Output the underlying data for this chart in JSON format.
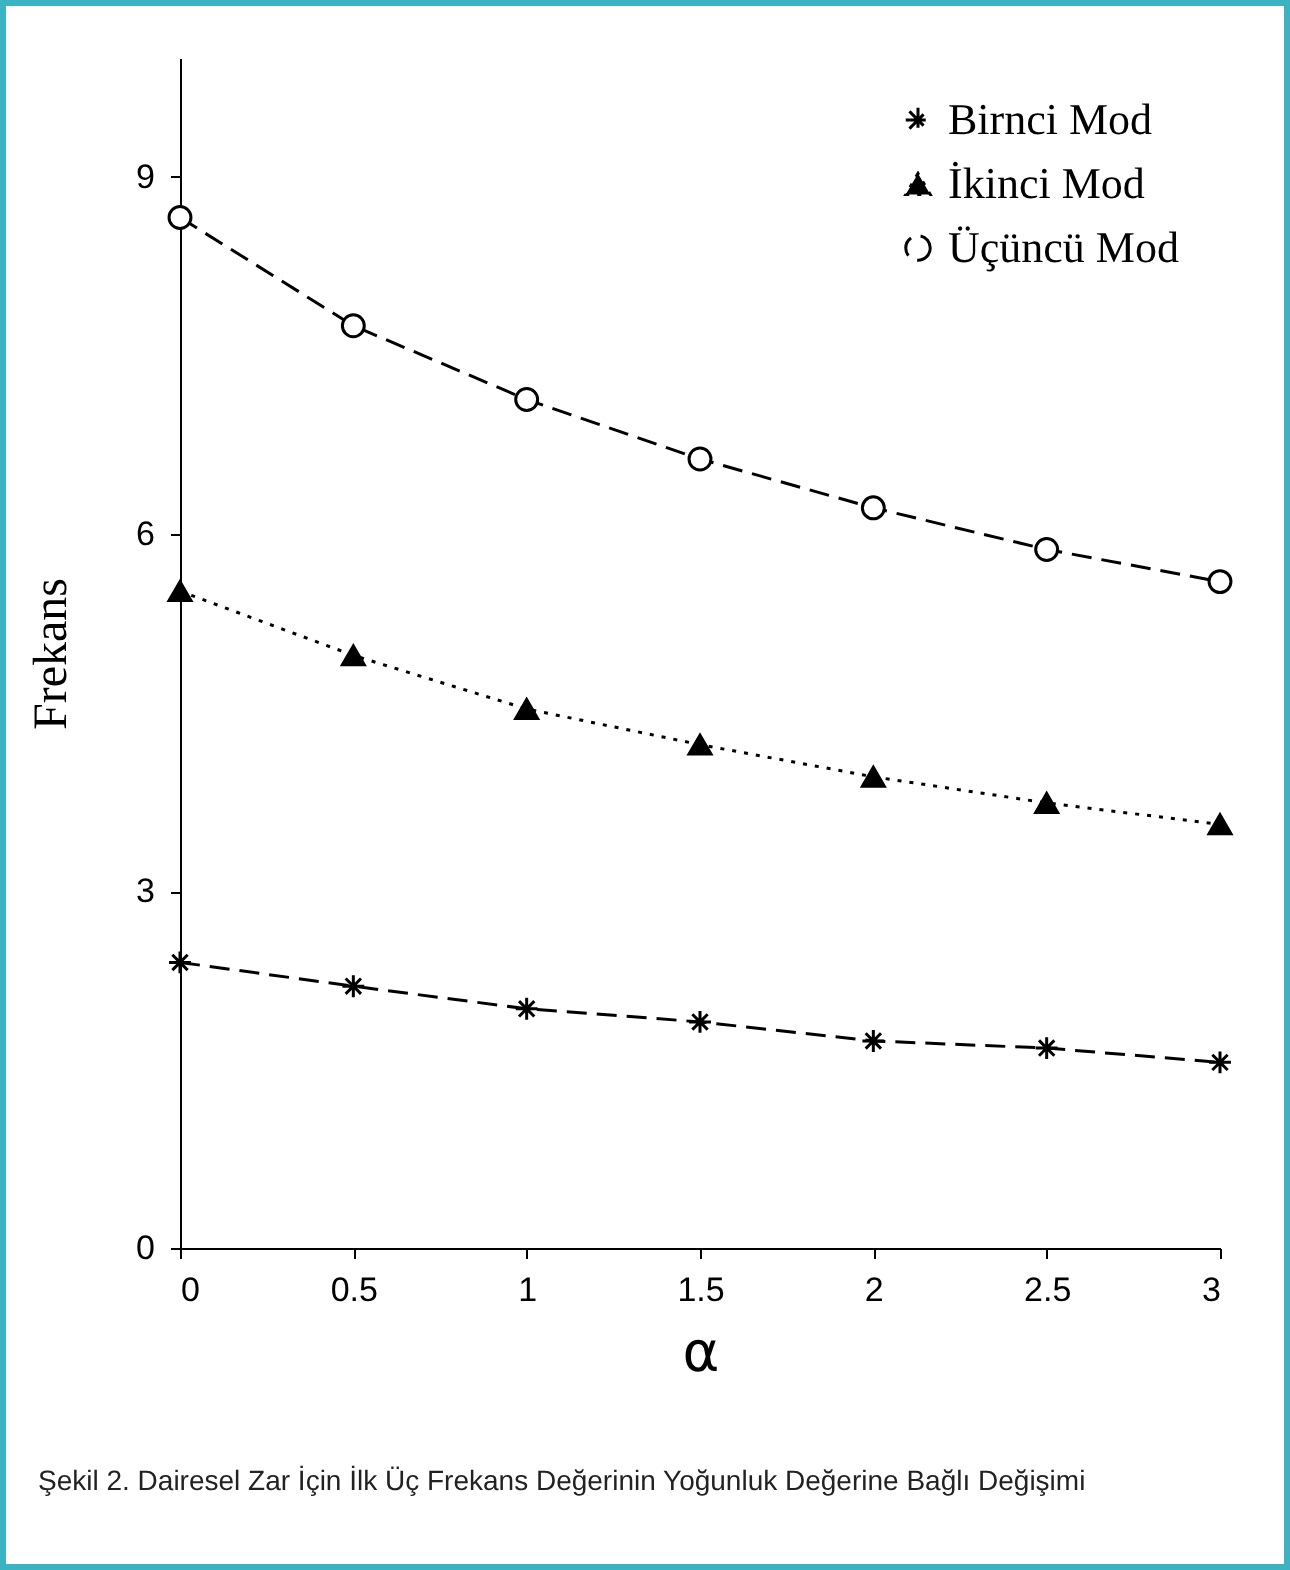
{
  "chart_data": {
    "type": "line",
    "xlabel": "α",
    "ylabel": "Frekans",
    "x": [
      0,
      0.5,
      1,
      1.5,
      2,
      2.5,
      3
    ],
    "series": [
      {
        "name": "Birnci Mod",
        "color": "#000000",
        "marker": "cross",
        "line_style": "dashed",
        "values": [
          2.4,
          2.2,
          2.01,
          1.9,
          1.74,
          1.68,
          1.56
        ]
      },
      {
        "name": "İkinci Mod",
        "color": "#000000",
        "marker": "triangle",
        "line_style": "dotted",
        "values": [
          5.52,
          4.98,
          4.53,
          4.23,
          3.96,
          3.74,
          3.56
        ]
      },
      {
        "name": "Üçüncü Mod",
        "color": "#000000",
        "marker": "circle",
        "line_style": "dashed",
        "values": [
          8.66,
          7.75,
          7.13,
          6.63,
          6.22,
          5.87,
          5.6
        ]
      }
    ],
    "xlim": [
      0,
      3
    ],
    "xticks": [
      0,
      0.5,
      1,
      1.5,
      2,
      2.5,
      3
    ],
    "ylim": [
      0,
      10
    ],
    "yticks": [
      0,
      3,
      6,
      9
    ],
    "grid": false,
    "legend": "top right",
    "annotations": [
      "Şekil 2. Dairesel Zar İçin İlk Üç Frekans Değerinin Yoğunluk Değerine Bağlı Değişimi"
    ]
  }
}
